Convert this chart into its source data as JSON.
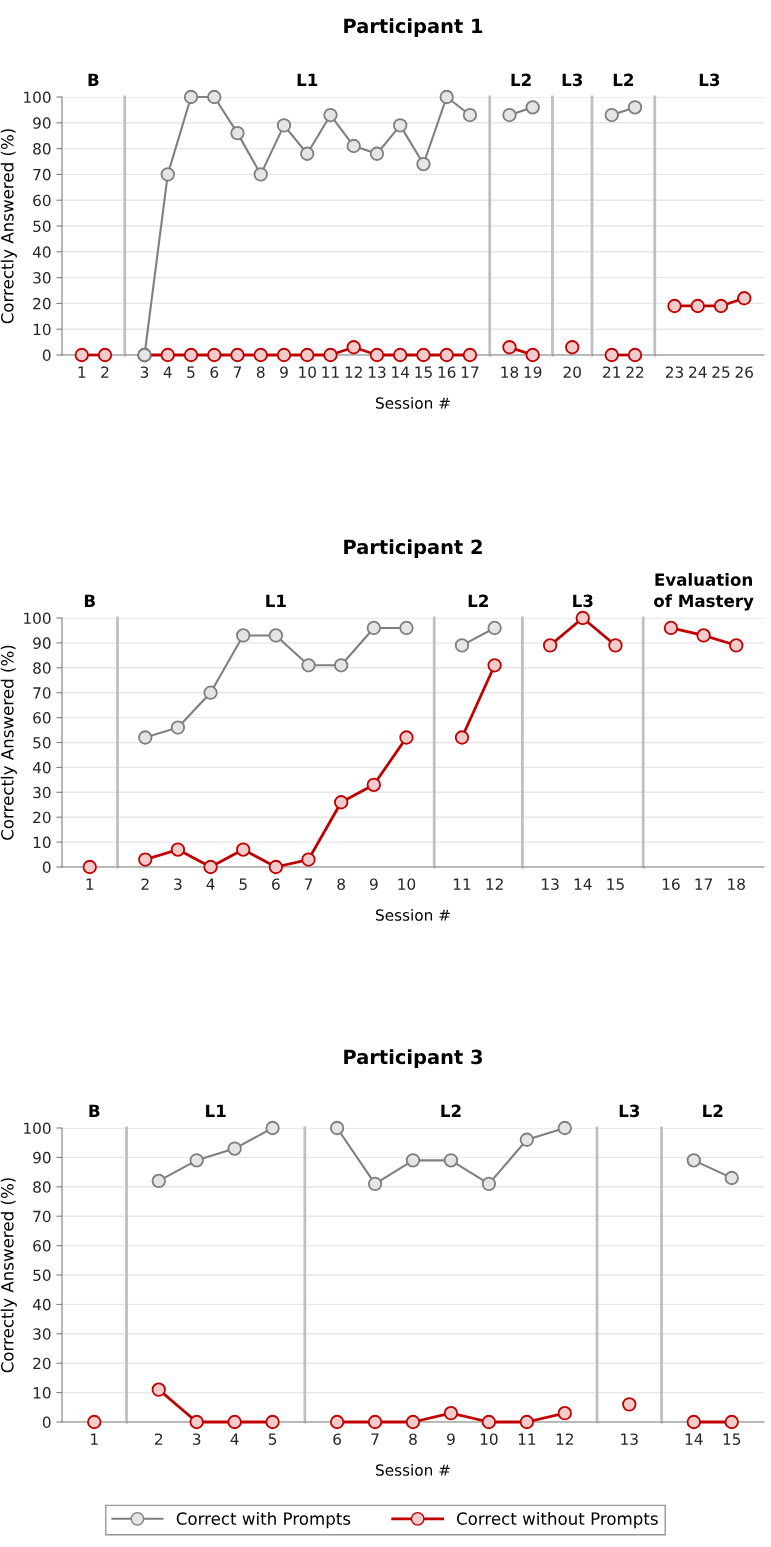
{
  "chart_data": [
    {
      "type": "line",
      "title": "B",
      "annotations": [
        "Participant 1"
      ],
      "ylabel": "Correctly Answered (%)",
      "ylim": [
        0,
        100
      ],
      "yticks": [
        0,
        10,
        20,
        30,
        40,
        50,
        60,
        70,
        80,
        90,
        100
      ],
      "grid": "y",
      "marker": "circle",
      "categories": [
        "1",
        "2"
      ],
      "series": [
        {
          "color": "#7f7f7f",
          "values": [
            null,
            null
          ]
        },
        {
          "color": "#c00000",
          "values": [
            0,
            0
          ]
        }
      ]
    },
    {
      "type": "line",
      "title": "L1",
      "xlabel": "Session #",
      "ylim": [
        0,
        100
      ],
      "yticks": [
        0,
        10,
        20,
        30,
        40,
        50,
        60,
        70,
        80,
        90,
        100
      ],
      "tick_labels": "x",
      "grid": "y",
      "marker": "circle",
      "categories": [
        "3",
        "4",
        "5",
        "6",
        "7",
        "8",
        "9",
        "10",
        "11",
        "12",
        "13",
        "14",
        "15",
        "16",
        "17"
      ],
      "series": [
        {
          "color": "#c00000",
          "values": [
            0,
            0,
            0,
            0,
            0,
            0,
            0,
            0,
            0,
            3,
            0,
            0,
            0,
            0,
            0
          ]
        },
        {
          "color": "#7f7f7f",
          "values": [
            0,
            70,
            100,
            100,
            86,
            70,
            89,
            78,
            93,
            81,
            78,
            89,
            74,
            100,
            93
          ]
        }
      ]
    },
    {
      "type": "line",
      "title": "L2",
      "ylim": [
        0,
        100
      ],
      "yticks": [
        0,
        10,
        20,
        30,
        40,
        50,
        60,
        70,
        80,
        90,
        100
      ],
      "tick_labels": "x",
      "grid": "y",
      "marker": "circle",
      "categories": [
        "18",
        "19"
      ],
      "series": [
        {
          "color": "#c00000",
          "values": [
            3,
            0
          ]
        },
        {
          "color": "#7f7f7f",
          "values": [
            93,
            96
          ]
        }
      ]
    },
    {
      "type": "line",
      "title": "L3",
      "ylim": [
        0,
        100
      ],
      "yticks": [
        0,
        10,
        20,
        30,
        40,
        50,
        60,
        70,
        80,
        90,
        100
      ],
      "tick_labels": "x",
      "grid": "y",
      "marker": "circle",
      "categories": [
        "20"
      ],
      "series": [
        {
          "color": "#c00000",
          "values": [
            3
          ]
        }
      ]
    },
    {
      "type": "line",
      "title": "L2",
      "ylim": [
        0,
        100
      ],
      "yticks": [
        0,
        10,
        20,
        30,
        40,
        50,
        60,
        70,
        80,
        90,
        100
      ],
      "tick_labels": "x",
      "grid": "y",
      "marker": "circle",
      "categories": [
        "21",
        "22"
      ],
      "series": [
        {
          "color": "#c00000",
          "values": [
            0,
            0
          ]
        },
        {
          "color": "#7f7f7f",
          "values": [
            93,
            96
          ]
        }
      ]
    },
    {
      "type": "line",
      "title": "L3",
      "ylim": [
        0,
        100
      ],
      "yticks": [
        0,
        10,
        20,
        30,
        40,
        50,
        60,
        70,
        80,
        90,
        100
      ],
      "tick_labels": "x",
      "grid": "y",
      "marker": "circle",
      "categories": [
        "23",
        "24",
        "25",
        "26"
      ],
      "series": [
        {
          "color": "#c00000",
          "values": [
            19,
            19,
            19,
            22
          ]
        }
      ]
    },
    {
      "type": "line",
      "title": "B",
      "annotations": [
        "Participant 2"
      ],
      "ylabel": "Correctly Answered (%)",
      "ylim": [
        0,
        100
      ],
      "yticks": [
        0,
        10,
        20,
        30,
        40,
        50,
        60,
        70,
        80,
        90,
        100
      ],
      "grid": "y",
      "marker": "circle",
      "categories": [
        "1"
      ],
      "series": [
        {
          "color": "#c00000",
          "values": [
            0
          ]
        }
      ]
    },
    {
      "type": "line",
      "title": "L1",
      "xlabel": "Session #",
      "ylim": [
        0,
        100
      ],
      "yticks": [
        0,
        10,
        20,
        30,
        40,
        50,
        60,
        70,
        80,
        90,
        100
      ],
      "tick_labels": "x",
      "grid": "y",
      "marker": "circle",
      "categories": [
        "2",
        "3",
        "4",
        "5",
        "6",
        "7",
        "8",
        "9",
        "10"
      ],
      "series": [
        {
          "color": "#7f7f7f",
          "values": [
            52,
            56,
            70,
            93,
            93,
            81,
            81,
            96,
            96
          ]
        },
        {
          "color": "#c00000",
          "values": [
            3,
            7,
            0,
            7,
            0,
            3,
            26,
            33,
            52
          ]
        }
      ]
    },
    {
      "type": "line",
      "title": "L2",
      "ylim": [
        0,
        100
      ],
      "yticks": [
        0,
        10,
        20,
        30,
        40,
        50,
        60,
        70,
        80,
        90,
        100
      ],
      "tick_labels": "x",
      "grid": "y",
      "marker": "circle",
      "categories": [
        "11",
        "12"
      ],
      "series": [
        {
          "color": "#7f7f7f",
          "values": [
            89,
            96
          ]
        },
        {
          "color": "#c00000",
          "values": [
            52,
            81
          ]
        }
      ]
    },
    {
      "type": "line",
      "title": "L3",
      "ylim": [
        0,
        100
      ],
      "yticks": [
        0,
        10,
        20,
        30,
        40,
        50,
        60,
        70,
        80,
        90,
        100
      ],
      "tick_labels": "x",
      "grid": "y",
      "marker": "circle",
      "categories": [
        "13",
        "14",
        "15"
      ],
      "series": [
        {
          "color": "#c00000",
          "values": [
            89,
            100,
            89
          ]
        }
      ]
    },
    {
      "type": "line",
      "title": "Evaluation\nof Mastery",
      "ylim": [
        0,
        100
      ],
      "yticks": [
        0,
        10,
        20,
        30,
        40,
        50,
        60,
        70,
        80,
        90,
        100
      ],
      "tick_labels": "x",
      "grid": "y",
      "marker": "circle",
      "categories": [
        "16",
        "17",
        "18"
      ],
      "series": [
        {
          "color": "#c00000",
          "values": [
            96,
            93,
            89
          ]
        }
      ]
    },
    {
      "type": "line",
      "title": "B",
      "annotations": [
        "Participant 3"
      ],
      "ylabel": "Correctly Answered (%)",
      "ylim": [
        0,
        100
      ],
      "yticks": [
        0,
        10,
        20,
        30,
        40,
        50,
        60,
        70,
        80,
        90,
        100
      ],
      "grid": "y",
      "marker": "circle",
      "categories": [
        "1"
      ],
      "series": [
        {
          "color": "#c00000",
          "values": [
            0
          ]
        }
      ]
    },
    {
      "type": "line",
      "title": "L1",
      "ylim": [
        0,
        100
      ],
      "yticks": [
        0,
        10,
        20,
        30,
        40,
        50,
        60,
        70,
        80,
        90,
        100
      ],
      "tick_labels": "x",
      "grid": "y",
      "marker": "circle",
      "categories": [
        "2",
        "3",
        "4",
        "5"
      ],
      "series": [
        {
          "color": "#7f7f7f",
          "values": [
            82,
            89,
            93,
            100
          ]
        },
        {
          "color": "#c00000",
          "values": [
            11,
            0,
            0,
            0
          ]
        }
      ]
    },
    {
      "type": "line",
      "title": "L2",
      "xlabel": "Session #",
      "ylim": [
        0,
        100
      ],
      "yticks": [
        0,
        10,
        20,
        30,
        40,
        50,
        60,
        70,
        80,
        90,
        100
      ],
      "tick_labels": "x",
      "grid": "y",
      "marker": "circle",
      "categories": [
        "6",
        "7",
        "8",
        "9",
        "10",
        "11",
        "12"
      ],
      "series": [
        {
          "color": "#7f7f7f",
          "values": [
            100,
            81,
            89,
            89,
            81,
            96,
            100
          ]
        },
        {
          "color": "#c00000",
          "values": [
            0,
            0,
            0,
            3,
            0,
            0,
            3
          ]
        }
      ]
    },
    {
      "type": "line",
      "title": "L3",
      "ylim": [
        0,
        100
      ],
      "yticks": [
        0,
        10,
        20,
        30,
        40,
        50,
        60,
        70,
        80,
        90,
        100
      ],
      "tick_labels": "x",
      "grid": "y",
      "marker": "circle",
      "categories": [
        "13"
      ],
      "series": [
        {
          "color": "#c00000",
          "values": [
            6
          ]
        }
      ]
    },
    {
      "type": "line",
      "title": "L2",
      "ylim": [
        0,
        100
      ],
      "yticks": [
        0,
        10,
        20,
        30,
        40,
        50,
        60,
        70,
        80,
        90,
        100
      ],
      "tick_labels": "x",
      "grid": "y",
      "marker": "circle",
      "legend": "bottom",
      "categories": [
        "14",
        "15"
      ],
      "series": [
        {
          "name": "Correct with Prompts",
          "color": "#7f7f7f",
          "values": [
            89,
            83
          ]
        },
        {
          "name": "Correct without Prompts",
          "color": "#c00000",
          "values": [
            0,
            0
          ]
        }
      ]
    }
  ]
}
